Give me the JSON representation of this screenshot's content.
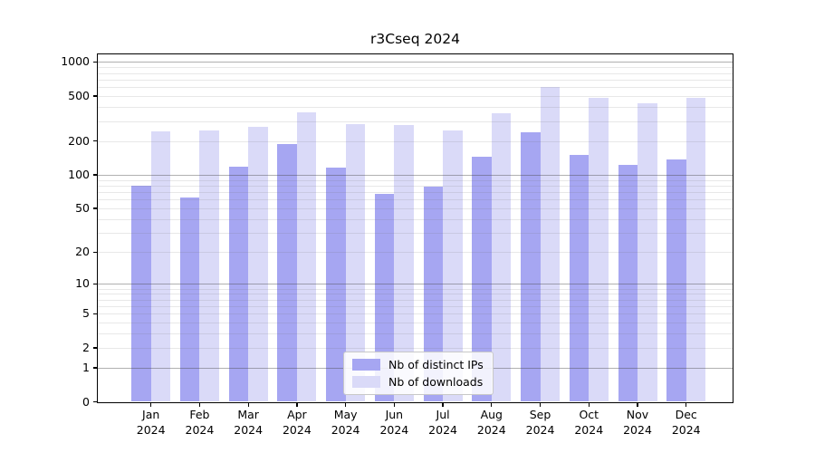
{
  "title": "r3Cseq 2024",
  "chart_data": {
    "type": "bar",
    "title": "r3Cseq 2024",
    "categories": [
      "Jan",
      "Feb",
      "Mar",
      "Apr",
      "May",
      "Jun",
      "Jul",
      "Aug",
      "Sep",
      "Oct",
      "Nov",
      "Dec"
    ],
    "year": "2024",
    "series": [
      {
        "name": "Nb of distinct IPs",
        "color": "#a6a6f2",
        "values": [
          80,
          63,
          118,
          189,
          117,
          67,
          78,
          145,
          240,
          150,
          123,
          137
        ]
      },
      {
        "name": "Nb of downloads",
        "color": "#dadaf8",
        "values": [
          245,
          246,
          268,
          356,
          283,
          279,
          250,
          353,
          598,
          486,
          428,
          478
        ]
      }
    ],
    "y_scale": "log10(value+1)",
    "y_ticks": [
      0,
      1,
      2,
      5,
      10,
      20,
      50,
      100,
      200,
      500,
      1000
    ],
    "y_major_gridlines": [
      1,
      10,
      100,
      1000
    ],
    "ylim": [
      0,
      1160
    ],
    "grid": true,
    "legend_position": "lower center"
  },
  "colors": {
    "background": "#ffffff",
    "axis": "#000000",
    "major_grid": "#b0b0b0",
    "minor_grid": "#e8e8e8",
    "legend_border": "#c8c8c8"
  }
}
